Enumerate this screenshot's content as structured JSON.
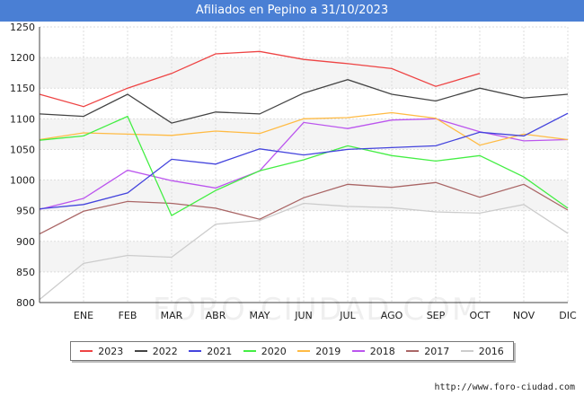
{
  "header": {
    "title": "Afiliados en Pepino a 31/10/2023"
  },
  "footer": {
    "source": "http://www.foro-ciudad.com"
  },
  "watermark": "FORO-CIUDAD.COM",
  "chart_data": {
    "type": "line",
    "title": "Afiliados en Pepino a 31/10/2023",
    "xlabel": "",
    "ylabel": "",
    "x": [
      "",
      "ENE",
      "FEB",
      "MAR",
      "ABR",
      "MAY",
      "JUN",
      "JUL",
      "AGO",
      "SEP",
      "OCT",
      "NOV",
      "DIC"
    ],
    "ylim": [
      800,
      1250
    ],
    "yticks": [
      800,
      850,
      900,
      950,
      1000,
      1050,
      1100,
      1150,
      1200,
      1250
    ],
    "grid": true,
    "legend_position": "bottom",
    "series": [
      {
        "name": "2023",
        "color": "#ee4444",
        "values": [
          1140,
          1120,
          1150,
          1174,
          1206,
          1210,
          1197,
          1190,
          1182,
          1153,
          1174,
          null,
          null
        ]
      },
      {
        "name": "2022",
        "color": "#444444",
        "values": [
          1108,
          1104,
          1140,
          1093,
          1111,
          1108,
          1142,
          1164,
          1140,
          1129,
          1150,
          1134,
          1140
        ]
      },
      {
        "name": "2021",
        "color": "#4444dd",
        "values": [
          953,
          960,
          979,
          1034,
          1026,
          1051,
          1041,
          1050,
          1053,
          1056,
          1078,
          1072,
          1109
        ]
      },
      {
        "name": "2020",
        "color": "#44ee44",
        "values": [
          1065,
          1072,
          1104,
          942,
          983,
          1015,
          1033,
          1056,
          1040,
          1031,
          1040,
          1005,
          954
        ]
      },
      {
        "name": "2019",
        "color": "#ffbb44",
        "values": [
          1066,
          1077,
          1075,
          1073,
          1080,
          1076,
          1100,
          1102,
          1110,
          1101,
          1057,
          1075,
          1066
        ]
      },
      {
        "name": "2018",
        "color": "#bb55ee",
        "values": [
          952,
          970,
          1016,
          999,
          987,
          1015,
          1094,
          1084,
          1098,
          1100,
          1079,
          1064,
          1066
        ]
      },
      {
        "name": "2017",
        "color": "#aa6666",
        "values": [
          912,
          949,
          965,
          962,
          954,
          936,
          971,
          993,
          988,
          996,
          972,
          993,
          951
        ]
      },
      {
        "name": "2016",
        "color": "#cccccc",
        "values": [
          805,
          864,
          877,
          874,
          928,
          934,
          962,
          957,
          955,
          948,
          946,
          960,
          913
        ]
      }
    ]
  }
}
